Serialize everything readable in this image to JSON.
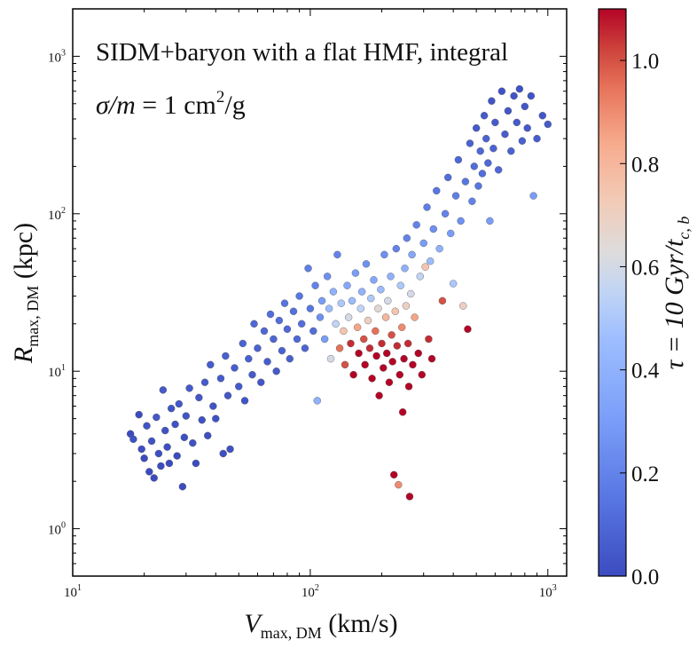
{
  "chart_data": {
    "type": "scatter",
    "title": "",
    "annotations": {
      "line1": "SIDM+baryon with a flat HMF, integral",
      "line2_sigma": "σ/m",
      "line2_eq": " = 1 cm",
      "line2_sup": "2",
      "line2_tail": "/g"
    },
    "xlabel": {
      "var": "V",
      "sub": "max, DM",
      "unit": " (km/s)"
    },
    "ylabel": {
      "var": "R",
      "sub": "max, DM",
      "unit": " (kpc)"
    },
    "xscale": "log",
    "yscale": "log",
    "xlim": [
      10,
      1200
    ],
    "ylim": [
      0.5,
      2000
    ],
    "xticks": [
      {
        "value": 10,
        "base": "10",
        "exp": "1"
      },
      {
        "value": 100,
        "base": "10",
        "exp": "2"
      },
      {
        "value": 1000,
        "base": "10",
        "exp": "3"
      }
    ],
    "yticks": [
      {
        "value": 1,
        "base": "10",
        "exp": "0"
      },
      {
        "value": 10,
        "base": "10",
        "exp": "1"
      },
      {
        "value": 100,
        "base": "10",
        "exp": "2"
      },
      {
        "value": 1000,
        "base": "10",
        "exp": "3"
      }
    ],
    "colorbar": {
      "label_main": "τ = 10 Gyr/",
      "label_t": "t",
      "label_sub": "c, b",
      "range": [
        0,
        1.1
      ],
      "ticks": [
        "0.0",
        "0.2",
        "0.4",
        "0.6",
        "0.8",
        "1.0"
      ],
      "colormap": "coolwarm",
      "colors": [
        "#3b4cc0",
        "#6788ee",
        "#9abbff",
        "#c9d7f0",
        "#edd1c2",
        "#f7a889",
        "#e26952",
        "#b40426"
      ]
    },
    "marker_edge_color": "#555555",
    "points": [
      [
        17.5,
        4.0,
        0.0
      ],
      [
        18.0,
        3.7,
        0.02
      ],
      [
        19.0,
        5.3,
        0.0
      ],
      [
        19.5,
        3.2,
        0.01
      ],
      [
        20.0,
        2.8,
        0.0
      ],
      [
        20.5,
        4.5,
        0.03
      ],
      [
        21.0,
        2.3,
        0.0
      ],
      [
        21.5,
        3.6,
        0.02
      ],
      [
        22.0,
        2.1,
        0.0
      ],
      [
        22.5,
        5.1,
        0.04
      ],
      [
        23.0,
        3.0,
        0.01
      ],
      [
        23.5,
        2.5,
        0.0
      ],
      [
        24.0,
        7.6,
        0.05
      ],
      [
        24.5,
        4.2,
        0.02
      ],
      [
        25.0,
        3.3,
        0.01
      ],
      [
        25.5,
        2.6,
        0.0
      ],
      [
        26.0,
        5.8,
        0.03
      ],
      [
        27.0,
        4.6,
        0.02
      ],
      [
        27.5,
        2.9,
        0.0
      ],
      [
        28.0,
        6.2,
        0.04
      ],
      [
        29.0,
        1.85,
        0.0
      ],
      [
        29.5,
        3.8,
        0.01
      ],
      [
        30.0,
        5.2,
        0.03
      ],
      [
        31.0,
        7.8,
        0.05
      ],
      [
        32.0,
        3.5,
        0.02
      ],
      [
        33.0,
        2.6,
        0.0
      ],
      [
        34.0,
        6.8,
        0.04
      ],
      [
        35.0,
        4.9,
        0.02
      ],
      [
        36.0,
        8.5,
        0.05
      ],
      [
        37.0,
        3.9,
        0.01
      ],
      [
        38.0,
        11.0,
        0.06
      ],
      [
        39.0,
        6.0,
        0.03
      ],
      [
        40.0,
        5.0,
        0.02
      ],
      [
        42.0,
        9.0,
        0.05
      ],
      [
        43.0,
        3.0,
        0.01
      ],
      [
        44.0,
        12.5,
        0.07
      ],
      [
        45.0,
        7.0,
        0.04
      ],
      [
        46.0,
        3.2,
        0.02
      ],
      [
        48.0,
        10.5,
        0.06
      ],
      [
        50.0,
        8.0,
        0.05
      ],
      [
        52.0,
        15.0,
        0.08
      ],
      [
        53.0,
        6.5,
        0.03
      ],
      [
        55.0,
        12.0,
        0.07
      ],
      [
        57.0,
        9.5,
        0.05
      ],
      [
        58.0,
        20.0,
        0.1
      ],
      [
        60.0,
        14.0,
        0.08
      ],
      [
        62.0,
        8.5,
        0.04
      ],
      [
        64.0,
        18.0,
        0.1
      ],
      [
        66.0,
        11.5,
        0.06
      ],
      [
        68.0,
        23.0,
        0.12
      ],
      [
        70.0,
        16.0,
        0.09
      ],
      [
        72.0,
        10.0,
        0.05
      ],
      [
        74.0,
        21.0,
        0.12
      ],
      [
        76.0,
        13.5,
        0.08
      ],
      [
        78.0,
        27.0,
        0.14
      ],
      [
        80.0,
        18.5,
        0.1
      ],
      [
        82.0,
        12.0,
        0.07
      ],
      [
        85.0,
        24.0,
        0.13
      ],
      [
        88.0,
        16.0,
        0.1
      ],
      [
        90.0,
        30.0,
        0.15
      ],
      [
        92.0,
        20.0,
        0.12
      ],
      [
        95.0,
        14.0,
        0.09
      ],
      [
        98.0,
        45.0,
        0.18
      ],
      [
        100.0,
        25.0,
        0.15
      ],
      [
        103.0,
        18.0,
        0.12
      ],
      [
        105.0,
        35.0,
        0.2
      ],
      [
        107.0,
        6.5,
        0.4
      ],
      [
        110.0,
        22.0,
        0.25
      ],
      [
        112.0,
        28.0,
        0.3
      ],
      [
        115.0,
        16.0,
        0.3
      ],
      [
        118.0,
        40.0,
        0.25
      ],
      [
        120.0,
        25.0,
        0.45
      ],
      [
        122.0,
        12.0,
        0.6
      ],
      [
        125.0,
        32.0,
        0.4
      ],
      [
        128.0,
        20.0,
        0.55
      ],
      [
        130.0,
        55.0,
        0.2
      ],
      [
        133.0,
        14.0,
        0.95
      ],
      [
        135.0,
        27.0,
        0.5
      ],
      [
        138.0,
        18.0,
        0.75
      ],
      [
        140.0,
        11.0,
        1.0
      ],
      [
        143.0,
        35.0,
        0.35
      ],
      [
        145.0,
        22.0,
        0.6
      ],
      [
        148.0,
        15.0,
        1.05
      ],
      [
        150.0,
        28.0,
        0.45
      ],
      [
        152.0,
        9.5,
        1.1
      ],
      [
        155.0,
        42.0,
        0.3
      ],
      [
        158.0,
        19.0,
        0.85
      ],
      [
        160.0,
        13.0,
        1.1
      ],
      [
        163.0,
        25.0,
        0.55
      ],
      [
        165.0,
        32.0,
        0.4
      ],
      [
        168.0,
        16.0,
        1.0
      ],
      [
        170.0,
        11.0,
        1.1
      ],
      [
        172.0,
        48.0,
        0.25
      ],
      [
        175.0,
        21.0,
        0.7
      ],
      [
        178.0,
        14.0,
        1.05
      ],
      [
        180.0,
        29.0,
        0.5
      ],
      [
        182.0,
        9.0,
        1.1
      ],
      [
        185.0,
        38.0,
        0.35
      ],
      [
        188.0,
        18.0,
        0.95
      ],
      [
        190.0,
        12.5,
        1.1
      ],
      [
        193.0,
        25.0,
        0.65
      ],
      [
        195.0,
        7.0,
        1.1
      ],
      [
        198.0,
        33.0,
        0.45
      ],
      [
        200.0,
        15.0,
        1.05
      ],
      [
        203.0,
        10.5,
        1.1
      ],
      [
        205.0,
        55.0,
        0.25
      ],
      [
        208.0,
        22.0,
        0.8
      ],
      [
        210.0,
        13.0,
        1.1
      ],
      [
        212.0,
        28.0,
        0.6
      ],
      [
        215.0,
        8.5,
        1.1
      ],
      [
        218.0,
        40.0,
        0.4
      ],
      [
        220.0,
        17.0,
        1.0
      ],
      [
        222.0,
        11.5,
        1.1
      ],
      [
        225.0,
        2.2,
        1.1
      ],
      [
        228.0,
        24.0,
        0.75
      ],
      [
        230.0,
        60.0,
        0.2
      ],
      [
        232.0,
        14.5,
        1.05
      ],
      [
        235.0,
        1.9,
        0.9
      ],
      [
        238.0,
        9.5,
        1.1
      ],
      [
        240.0,
        35.0,
        0.5
      ],
      [
        243.0,
        19.0,
        0.9
      ],
      [
        245.0,
        5.5,
        1.1
      ],
      [
        248.0,
        12.0,
        1.1
      ],
      [
        250.0,
        45.0,
        0.4
      ],
      [
        253.0,
        26.0,
        0.7
      ],
      [
        255.0,
        70.0,
        0.2
      ],
      [
        258.0,
        15.0,
        1.05
      ],
      [
        260.0,
        8.0,
        1.1
      ],
      [
        262.0,
        1.6,
        1.1
      ],
      [
        265.0,
        31.0,
        0.6
      ],
      [
        268.0,
        55.0,
        0.35
      ],
      [
        270.0,
        11.0,
        1.1
      ],
      [
        275.0,
        22.0,
        0.85
      ],
      [
        280.0,
        85.0,
        0.2
      ],
      [
        285.0,
        13.0,
        1.1
      ],
      [
        290.0,
        40.0,
        0.55
      ],
      [
        295.0,
        9.5,
        1.1
      ],
      [
        300.0,
        65.0,
        0.3
      ],
      [
        305.0,
        46.0,
        0.75
      ],
      [
        310.0,
        110.0,
        0.18
      ],
      [
        315.0,
        16.0,
        1.05
      ],
      [
        320.0,
        50.0,
        0.45
      ],
      [
        325.0,
        12.0,
        1.1
      ],
      [
        330.0,
        80.0,
        0.25
      ],
      [
        340.0,
        140.0,
        0.15
      ],
      [
        350.0,
        60.0,
        0.4
      ],
      [
        360.0,
        28.0,
        1.0
      ],
      [
        370.0,
        100.0,
        0.2
      ],
      [
        380.0,
        170.0,
        0.12
      ],
      [
        390.0,
        75.0,
        0.3
      ],
      [
        400.0,
        36.0,
        0.5
      ],
      [
        410.0,
        130.0,
        0.18
      ],
      [
        420.0,
        220.0,
        0.1
      ],
      [
        430.0,
        90.0,
        0.25
      ],
      [
        440.0,
        26.0,
        0.7
      ],
      [
        450.0,
        160.0,
        0.15
      ],
      [
        460.0,
        18.5,
        1.1
      ],
      [
        470.0,
        280.0,
        0.08
      ],
      [
        480.0,
        120.0,
        0.2
      ],
      [
        490.0,
        200.0,
        0.12
      ],
      [
        500.0,
        350.0,
        0.05
      ],
      [
        510.0,
        150.0,
        0.15
      ],
      [
        520.0,
        250.0,
        0.1
      ],
      [
        530.0,
        180.0,
        0.12
      ],
      [
        540.0,
        420.0,
        0.05
      ],
      [
        550.0,
        300.0,
        0.08
      ],
      [
        560.0,
        210.0,
        0.1
      ],
      [
        570.0,
        90.0,
        0.3
      ],
      [
        580.0,
        520.0,
        0.03
      ],
      [
        590.0,
        260.0,
        0.08
      ],
      [
        600.0,
        380.0,
        0.05
      ],
      [
        620.0,
        190.0,
        0.1
      ],
      [
        640.0,
        600.0,
        0.02
      ],
      [
        660.0,
        320.0,
        0.06
      ],
      [
        680.0,
        450.0,
        0.04
      ],
      [
        700.0,
        250.0,
        0.08
      ],
      [
        720.0,
        560.0,
        0.03
      ],
      [
        740.0,
        380.0,
        0.05
      ],
      [
        760.0,
        620.0,
        0.02
      ],
      [
        780.0,
        290.0,
        0.07
      ],
      [
        800.0,
        480.0,
        0.04
      ],
      [
        820.0,
        350.0,
        0.05
      ],
      [
        850.0,
        560.0,
        0.03
      ],
      [
        870.0,
        130.0,
        0.3
      ],
      [
        900.0,
        300.0,
        0.06
      ],
      [
        950.0,
        420.0,
        0.04
      ],
      [
        1000.0,
        370.0,
        0.05
      ]
    ]
  }
}
